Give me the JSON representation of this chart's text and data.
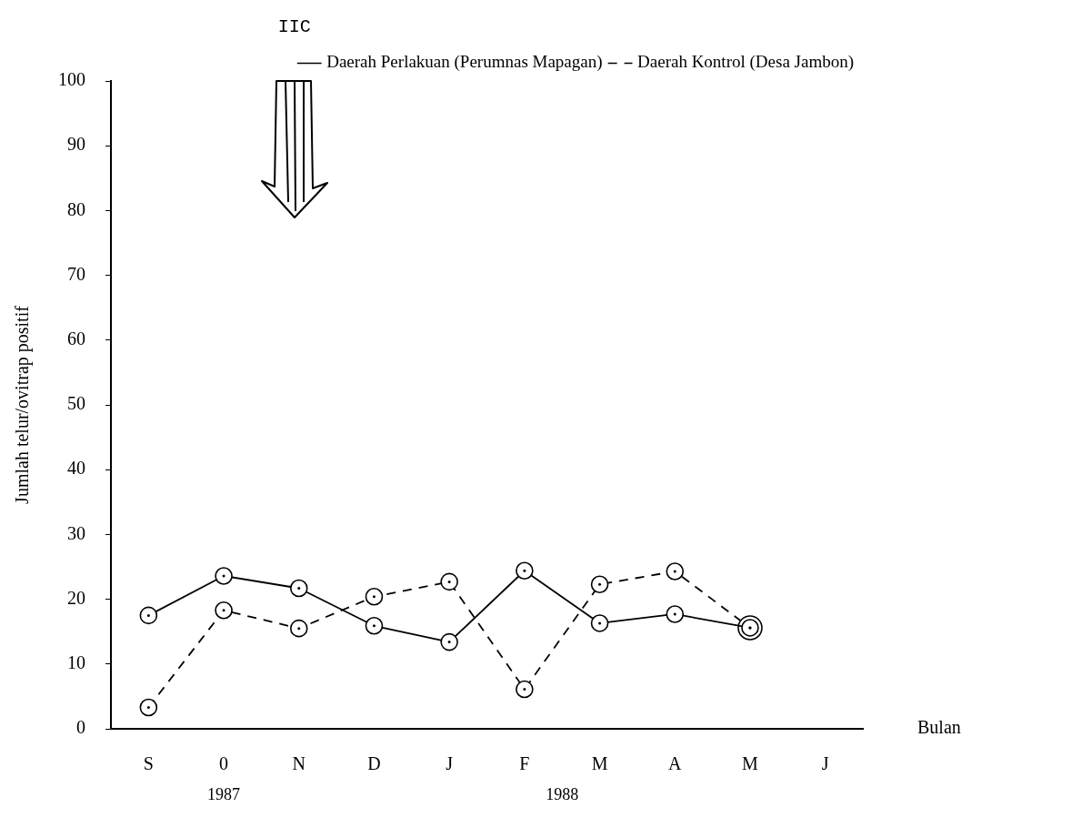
{
  "chart_data": {
    "type": "line",
    "xlabel": "Bulan",
    "ylabel": "Jumlah telur/ovitrap positif",
    "categories": [
      "S",
      "0",
      "N",
      "D",
      "J",
      "F",
      "M",
      "A",
      "M",
      "J"
    ],
    "series": [
      {
        "name": "Daerah Perlakuan (Perumnas Mapagan)",
        "color": "#000000",
        "line_style": "solid",
        "values": [
          17.5,
          23.6,
          21.7,
          15.9,
          13.4,
          24.4,
          16.3,
          17.7,
          15.6,
          null
        ]
      },
      {
        "name": "Daerah Kontrol (Desa Jambon)",
        "color": "#000000",
        "line_style": "dashed",
        "values": [
          3.3,
          18.3,
          15.5,
          20.4,
          22.7,
          6.1,
          22.3,
          24.3,
          15.6,
          null
        ]
      }
    ],
    "ylim": [
      0,
      100
    ],
    "yticks": [
      0,
      10,
      20,
      30,
      40,
      50,
      60,
      70,
      80,
      90,
      100
    ],
    "grid": false,
    "legend": "top right",
    "marker": "circle",
    "annotations": [
      "IIC",
      "1987",
      "1988"
    ]
  }
}
